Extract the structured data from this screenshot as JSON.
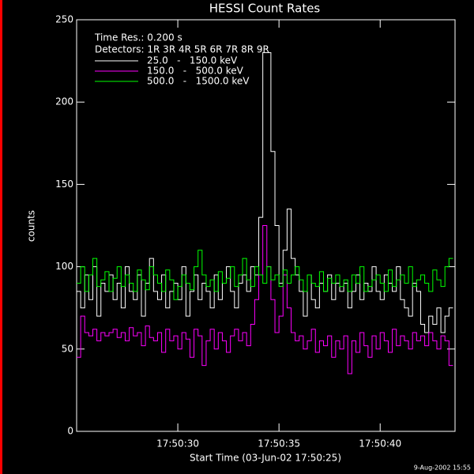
{
  "chart_data": {
    "type": "step",
    "title": "HESSI Count Rates",
    "y_label": "counts",
    "x_label": "Start Time (03-Jun-02 17:50:25)",
    "annotations": [
      "Time Res.: 0.200 s",
      "Detectors: 1R 3R 4R 5R 6R 7R 8R 9R"
    ],
    "footer": "9-Aug-2002 15:55",
    "xlim": [
      0,
      18.7
    ],
    "xticks": [
      {
        "value": 5,
        "label": "17:50:30"
      },
      {
        "value": 10,
        "label": "17:50:35"
      },
      {
        "value": 15,
        "label": "17:50:40"
      }
    ],
    "ylim": [
      0,
      250
    ],
    "yticks": [
      0,
      50,
      100,
      150,
      200,
      250
    ],
    "x": [
      0,
      0.2,
      0.4,
      0.6,
      0.8,
      1,
      1.2,
      1.4,
      1.6,
      1.8,
      2,
      2.2,
      2.4,
      2.6,
      2.8,
      3,
      3.2,
      3.4,
      3.6,
      3.8,
      4,
      4.2,
      4.4,
      4.6,
      4.8,
      5,
      5.2,
      5.4,
      5.6,
      5.8,
      6,
      6.2,
      6.4,
      6.6,
      6.8,
      7,
      7.2,
      7.4,
      7.6,
      7.8,
      8,
      8.2,
      8.4,
      8.6,
      8.8,
      9,
      9.2,
      9.4,
      9.6,
      9.8,
      10,
      10.2,
      10.4,
      10.6,
      10.8,
      11,
      11.2,
      11.4,
      11.6,
      11.8,
      12,
      12.2,
      12.4,
      12.6,
      12.8,
      13,
      13.2,
      13.4,
      13.6,
      13.8,
      14,
      14.2,
      14.4,
      14.6,
      14.8,
      15,
      15.2,
      15.4,
      15.6,
      15.8,
      16,
      16.2,
      16.4,
      16.6,
      16.8,
      17,
      17.2,
      17.4,
      17.6,
      17.8,
      18,
      18.2,
      18.4
    ],
    "series": [
      {
        "name": "25.0   -   150.0 keV",
        "color": "#ffffff",
        "values": [
          85,
          75,
          95,
          80,
          100,
          70,
          90,
          85,
          95,
          80,
          90,
          75,
          100,
          85,
          80,
          95,
          70,
          90,
          105,
          85,
          80,
          95,
          75,
          85,
          90,
          80,
          100,
          70,
          85,
          95,
          80,
          90,
          85,
          75,
          95,
          80,
          90,
          100,
          85,
          75,
          90,
          95,
          85,
          100,
          95,
          130,
          230,
          230,
          170,
          125,
          90,
          110,
          135,
          105,
          95,
          85,
          70,
          95,
          80,
          75,
          90,
          85,
          95,
          80,
          90,
          85,
          90,
          75,
          85,
          95,
          80,
          90,
          85,
          100,
          85,
          80,
          95,
          90,
          85,
          100,
          80,
          75,
          70,
          90,
          85,
          65,
          60,
          70,
          65,
          75,
          60,
          70,
          75
        ]
      },
      {
        "name": "150.0   -   500.0 keV",
        "color": "#ff00ff",
        "values": [
          45,
          70,
          60,
          58,
          62,
          55,
          60,
          58,
          60,
          62,
          57,
          60,
          55,
          63,
          58,
          60,
          52,
          64,
          57,
          55,
          60,
          48,
          62,
          55,
          58,
          50,
          60,
          56,
          45,
          62,
          58,
          40,
          55,
          62,
          50,
          60,
          55,
          48,
          58,
          62,
          55,
          60,
          52,
          65,
          80,
          95,
          125,
          100,
          80,
          60,
          70,
          95,
          75,
          60,
          55,
          58,
          50,
          55,
          62,
          48,
          55,
          52,
          58,
          45,
          55,
          50,
          58,
          35,
          55,
          48,
          60,
          52,
          45,
          58,
          50,
          60,
          55,
          48,
          62,
          52,
          58,
          55,
          50,
          60,
          55,
          58,
          52,
          60,
          55,
          50,
          58,
          55,
          40
        ]
      },
      {
        "name": "500.0   -   1500.0 keV",
        "color": "#00ff00",
        "values": [
          90,
          100,
          85,
          95,
          105,
          88,
          92,
          97,
          85,
          93,
          100,
          88,
          95,
          90,
          85,
          98,
          92,
          86,
          100,
          95,
          90,
          85,
          98,
          92,
          80,
          88,
          95,
          90,
          86,
          100,
          110,
          95,
          88,
          92,
          85,
          97,
          90,
          93,
          100,
          88,
          95,
          105,
          92,
          88,
          100,
          95,
          90,
          100,
          92,
          95,
          88,
          98,
          90,
          95,
          100,
          92,
          85,
          95,
          90,
          88,
          97,
          85,
          93,
          90,
          95,
          88,
          92,
          85,
          95,
          90,
          100,
          85,
          88,
          92,
          95,
          90,
          85,
          98,
          88,
          92,
          95,
          90,
          100,
          88,
          92,
          95,
          90,
          85,
          98,
          92,
          88,
          100,
          105
        ]
      }
    ]
  }
}
